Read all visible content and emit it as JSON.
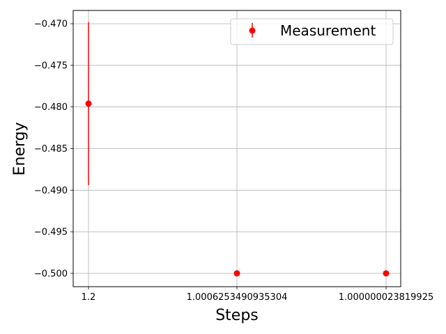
{
  "chart_data": {
    "type": "scatter",
    "title": "",
    "xlabel": "Steps",
    "ylabel": "Energy",
    "x_tick_labels": [
      "1.2",
      "1.0006253490935304",
      "1.000000023819925"
    ],
    "y_ticks": [
      -0.47,
      -0.475,
      -0.48,
      -0.485,
      -0.49,
      -0.495,
      -0.5
    ],
    "y_tick_labels": [
      "−0.470",
      "−0.475",
      "−0.480",
      "−0.485",
      "−0.490",
      "−0.495",
      "−0.500"
    ],
    "ylim": [
      -0.5016,
      -0.4684
    ],
    "grid": true,
    "legend_position": "top-right",
    "series": [
      {
        "name": "Measurement",
        "color": "#ff0000",
        "marker": "circle",
        "error_bars": true,
        "points": [
          {
            "x": "1.2",
            "y": -0.4796,
            "yerr": 0.0098
          },
          {
            "x": "1.0006253490935304",
            "y": -0.5,
            "yerr": 0.0
          },
          {
            "x": "1.000000023819925",
            "y": -0.5,
            "yerr": 0.0
          }
        ]
      }
    ]
  }
}
